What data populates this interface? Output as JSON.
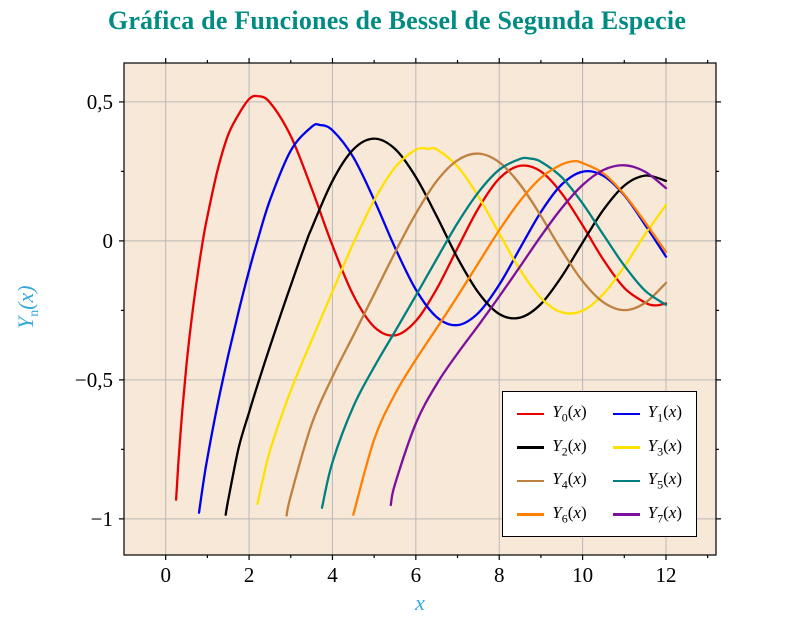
{
  "chart_data": {
    "type": "line",
    "title": "Gráfica de Funciones de Bessel de Segunda Especie",
    "xlabel": "x",
    "ylabel": "Yn(x)",
    "ylabel_parts": {
      "base": "Y",
      "sub": "n",
      "open": "(",
      "var": "x",
      "close": ")"
    },
    "xlim": [
      -1.0,
      13.2
    ],
    "ylim": [
      -1.13,
      0.64
    ],
    "grid": true,
    "legend_position": "bottom-right",
    "x_ticks": {
      "values": [
        0,
        2,
        4,
        6,
        8,
        10,
        12
      ],
      "labels": [
        "0",
        "2",
        "4",
        "6",
        "8",
        "10",
        "12"
      ]
    },
    "y_ticks": {
      "values": [
        0.5,
        0,
        -0.5,
        -1
      ],
      "labels": [
        "0,5",
        "0",
        "−0,5",
        "−1"
      ]
    },
    "x_minor_ticks": [
      1,
      3,
      5,
      7,
      9,
      11,
      13
    ],
    "y_minor_ticks": [
      -0.75,
      -0.25,
      0.25
    ],
    "style": {
      "plot_bg": "#f8e8d8",
      "grid_color": "#b8b8b8",
      "axis_color": "#000000",
      "title_color": "#008c82",
      "axis_label_color": "#35a8de"
    },
    "series": [
      {
        "name": "Y0(x)",
        "label": {
          "base": "Y",
          "sub": "0",
          "open": "(",
          "var": "x",
          "close": ")"
        },
        "color": "#e60000",
        "points": [
          [
            0.25,
            -0.931
          ],
          [
            0.3,
            -0.807
          ],
          [
            0.4,
            -0.606
          ],
          [
            0.5,
            -0.445
          ],
          [
            0.6,
            -0.309
          ],
          [
            0.75,
            -0.137
          ],
          [
            0.89,
            0.0
          ],
          [
            1.0,
            0.088
          ],
          [
            1.25,
            0.258
          ],
          [
            1.5,
            0.382
          ],
          [
            1.75,
            0.455
          ],
          [
            2.0,
            0.51
          ],
          [
            2.2,
            0.521
          ],
          [
            2.5,
            0.498
          ],
          [
            3.0,
            0.377
          ],
          [
            3.5,
            0.189
          ],
          [
            4.0,
            -0.017
          ],
          [
            4.5,
            -0.195
          ],
          [
            5.0,
            -0.309
          ],
          [
            5.5,
            -0.34
          ],
          [
            6.0,
            -0.288
          ],
          [
            6.5,
            -0.173
          ],
          [
            7.0,
            -0.026
          ],
          [
            7.5,
            0.117
          ],
          [
            8.0,
            0.224
          ],
          [
            8.5,
            0.27
          ],
          [
            9.0,
            0.25
          ],
          [
            9.5,
            0.171
          ],
          [
            10.0,
            0.056
          ],
          [
            10.5,
            -0.068
          ],
          [
            11.0,
            -0.169
          ],
          [
            11.5,
            -0.222
          ],
          [
            11.75,
            -0.232
          ],
          [
            12.0,
            -0.225
          ]
        ]
      },
      {
        "name": "Y1(x)",
        "label": {
          "base": "Y",
          "sub": "1",
          "open": "(",
          "var": "x",
          "close": ")"
        },
        "color": "#0000ee",
        "points": [
          [
            0.8,
            -0.978
          ],
          [
            0.9,
            -0.873
          ],
          [
            1.0,
            -0.781
          ],
          [
            1.25,
            -0.585
          ],
          [
            1.5,
            -0.412
          ],
          [
            1.75,
            -0.254
          ],
          [
            2.0,
            -0.107
          ],
          [
            2.2,
            0.0
          ],
          [
            2.5,
            0.146
          ],
          [
            3.0,
            0.325
          ],
          [
            3.5,
            0.41
          ],
          [
            3.7,
            0.417
          ],
          [
            4.0,
            0.398
          ],
          [
            4.5,
            0.301
          ],
          [
            5.0,
            0.148
          ],
          [
            5.5,
            -0.024
          ],
          [
            6.0,
            -0.175
          ],
          [
            6.5,
            -0.274
          ],
          [
            7.0,
            -0.303
          ],
          [
            7.5,
            -0.259
          ],
          [
            8.0,
            -0.158
          ],
          [
            8.5,
            -0.026
          ],
          [
            9.0,
            0.104
          ],
          [
            9.5,
            0.203
          ],
          [
            10.0,
            0.249
          ],
          [
            10.5,
            0.234
          ],
          [
            11.0,
            0.164
          ],
          [
            11.5,
            0.058
          ],
          [
            12.0,
            -0.057
          ]
        ]
      },
      {
        "name": "Y2(x)",
        "label": {
          "base": "Y",
          "sub": "2",
          "open": "(",
          "var": "x",
          "close": ")"
        },
        "color": "#000000",
        "points": [
          [
            1.44,
            -0.985
          ],
          [
            1.5,
            -0.932
          ],
          [
            1.75,
            -0.745
          ],
          [
            2.0,
            -0.617
          ],
          [
            2.25,
            -0.496
          ],
          [
            2.5,
            -0.381
          ],
          [
            3.0,
            -0.16
          ],
          [
            3.38,
            0.0
          ],
          [
            3.5,
            0.045
          ],
          [
            4.0,
            0.216
          ],
          [
            4.5,
            0.329
          ],
          [
            5.0,
            0.368
          ],
          [
            5.5,
            0.331
          ],
          [
            6.0,
            0.23
          ],
          [
            6.5,
            0.089
          ],
          [
            7.0,
            -0.061
          ],
          [
            7.5,
            -0.186
          ],
          [
            8.0,
            -0.263
          ],
          [
            8.5,
            -0.276
          ],
          [
            9.0,
            -0.227
          ],
          [
            9.5,
            -0.128
          ],
          [
            10.0,
            -0.006
          ],
          [
            10.5,
            0.112
          ],
          [
            11.0,
            0.199
          ],
          [
            11.5,
            0.235
          ],
          [
            12.0,
            0.216
          ]
        ]
      },
      {
        "name": "Y3(x)",
        "label": {
          "base": "Y",
          "sub": "3",
          "open": "(",
          "var": "x",
          "close": ")"
        },
        "color": "#ffe100",
        "points": [
          [
            2.2,
            -0.946
          ],
          [
            2.5,
            -0.756
          ],
          [
            3.0,
            -0.539
          ],
          [
            3.5,
            -0.358
          ],
          [
            4.0,
            -0.182
          ],
          [
            4.5,
            -0.009
          ],
          [
            5.0,
            0.146
          ],
          [
            5.5,
            0.264
          ],
          [
            6.0,
            0.328
          ],
          [
            6.3,
            0.331
          ],
          [
            6.5,
            0.329
          ],
          [
            7.0,
            0.268
          ],
          [
            7.5,
            0.16
          ],
          [
            8.0,
            0.027
          ],
          [
            8.5,
            -0.104
          ],
          [
            9.0,
            -0.205
          ],
          [
            9.5,
            -0.257
          ],
          [
            10.0,
            -0.251
          ],
          [
            10.5,
            -0.191
          ],
          [
            11.0,
            -0.092
          ],
          [
            11.5,
            0.024
          ],
          [
            12.0,
            0.129
          ]
        ]
      },
      {
        "name": "Y4(x)",
        "label": {
          "base": "Y",
          "sub": "4",
          "open": "(",
          "var": "x",
          "close": ")"
        },
        "color": "#bf8040",
        "points": [
          [
            2.9,
            -0.988
          ],
          [
            3.0,
            -0.917
          ],
          [
            3.5,
            -0.66
          ],
          [
            4.0,
            -0.489
          ],
          [
            4.5,
            -0.341
          ],
          [
            5.0,
            -0.192
          ],
          [
            5.5,
            -0.042
          ],
          [
            6.0,
            0.098
          ],
          [
            6.5,
            0.215
          ],
          [
            7.0,
            0.29
          ],
          [
            7.5,
            0.314
          ],
          [
            8.0,
            0.283
          ],
          [
            8.5,
            0.203
          ],
          [
            9.0,
            0.09
          ],
          [
            9.5,
            -0.034
          ],
          [
            10.0,
            -0.145
          ],
          [
            10.5,
            -0.221
          ],
          [
            11.0,
            -0.249
          ],
          [
            11.5,
            -0.223
          ],
          [
            12.0,
            -0.151
          ]
        ]
      },
      {
        "name": "Y5(x)",
        "label": {
          "base": "Y",
          "sub": "5",
          "open": "(",
          "var": "x",
          "close": ")"
        },
        "color": "#008080",
        "points": [
          [
            3.75,
            -0.96
          ],
          [
            4.0,
            -0.796
          ],
          [
            4.5,
            -0.596
          ],
          [
            5.0,
            -0.454
          ],
          [
            5.5,
            -0.326
          ],
          [
            6.0,
            -0.197
          ],
          [
            6.5,
            -0.065
          ],
          [
            7.0,
            0.064
          ],
          [
            7.5,
            0.175
          ],
          [
            8.0,
            0.256
          ],
          [
            8.5,
            0.295
          ],
          [
            8.75,
            0.296
          ],
          [
            9.0,
            0.285
          ],
          [
            9.5,
            0.229
          ],
          [
            10.0,
            0.135
          ],
          [
            10.5,
            0.022
          ],
          [
            11.0,
            -0.089
          ],
          [
            11.5,
            -0.179
          ],
          [
            12.0,
            -0.23
          ]
        ]
      },
      {
        "name": "Y6(x)",
        "label": {
          "base": "Y",
          "sub": "6",
          "open": "(",
          "var": "x",
          "close": ")"
        },
        "color": "#ff8000",
        "points": [
          [
            4.5,
            -0.985
          ],
          [
            5.0,
            -0.715
          ],
          [
            5.5,
            -0.551
          ],
          [
            6.0,
            -0.427
          ],
          [
            6.5,
            -0.314
          ],
          [
            7.0,
            -0.199
          ],
          [
            7.5,
            -0.08
          ],
          [
            8.0,
            0.038
          ],
          [
            8.5,
            0.144
          ],
          [
            9.0,
            0.227
          ],
          [
            9.5,
            0.275
          ],
          [
            9.8,
            0.287
          ],
          [
            10.0,
            0.28
          ],
          [
            10.5,
            0.243
          ],
          [
            11.0,
            0.167
          ],
          [
            11.5,
            0.067
          ],
          [
            12.0,
            -0.04
          ]
        ]
      },
      {
        "name": "Y7(x)",
        "label": {
          "base": "Y",
          "sub": "7",
          "open": "(",
          "var": "x",
          "close": ")"
        },
        "color": "#7d0f9d",
        "points": [
          [
            5.4,
            -0.95
          ],
          [
            5.5,
            -0.875
          ],
          [
            6.0,
            -0.657
          ],
          [
            6.5,
            -0.515
          ],
          [
            7.0,
            -0.405
          ],
          [
            7.5,
            -0.304
          ],
          [
            8.0,
            -0.2
          ],
          [
            8.5,
            -0.092
          ],
          [
            9.0,
            0.017
          ],
          [
            9.5,
            0.118
          ],
          [
            10.0,
            0.201
          ],
          [
            10.5,
            0.255
          ],
          [
            11.0,
            0.272
          ],
          [
            11.5,
            0.249
          ],
          [
            12.0,
            0.19
          ]
        ]
      }
    ]
  }
}
